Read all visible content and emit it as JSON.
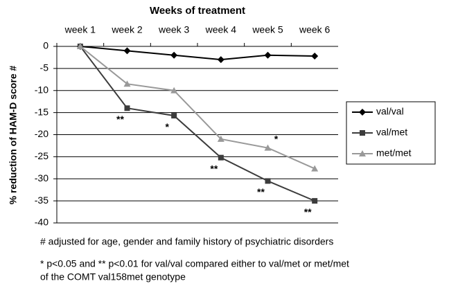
{
  "chart_data": {
    "type": "line",
    "title": "Weeks of treatment",
    "y_label": "% reduction of HAM-D score #",
    "categories": [
      "week 1",
      "week 2",
      "week 3",
      "week 4",
      "week 5",
      "week 6"
    ],
    "series": [
      {
        "name": "val/val",
        "color": "#000000",
        "marker": "diamond",
        "values": [
          0,
          -1,
          -2,
          -3,
          -2,
          -2.2
        ],
        "annotations": [
          null,
          null,
          null,
          null,
          null,
          null
        ]
      },
      {
        "name": "val/met",
        "color": "#3c3c3c",
        "marker": "square",
        "values": [
          0,
          -14,
          -15.7,
          -25.2,
          -30.5,
          -35
        ],
        "annotations": [
          null,
          "**",
          "*",
          "**",
          "**",
          "**"
        ]
      },
      {
        "name": "met/met",
        "color": "#999999",
        "marker": "triangle",
        "values": [
          0,
          -8.5,
          -10,
          -21,
          -23,
          -27.7
        ],
        "annotations": [
          null,
          null,
          null,
          null,
          "*",
          null
        ]
      }
    ],
    "ylim": [
      -40,
      0
    ],
    "yticks": [
      0,
      -5,
      -10,
      -15,
      -20,
      -25,
      -30,
      -35,
      -40
    ],
    "grid": true,
    "legend": "right",
    "footnotes": [
      "# adjusted for age, gender and family history of psychiatric disorders",
      "* p<0.05 and ** p<0.01 for val/val compared either to val/met or met/met",
      "of the COMT val158met genotype"
    ]
  }
}
